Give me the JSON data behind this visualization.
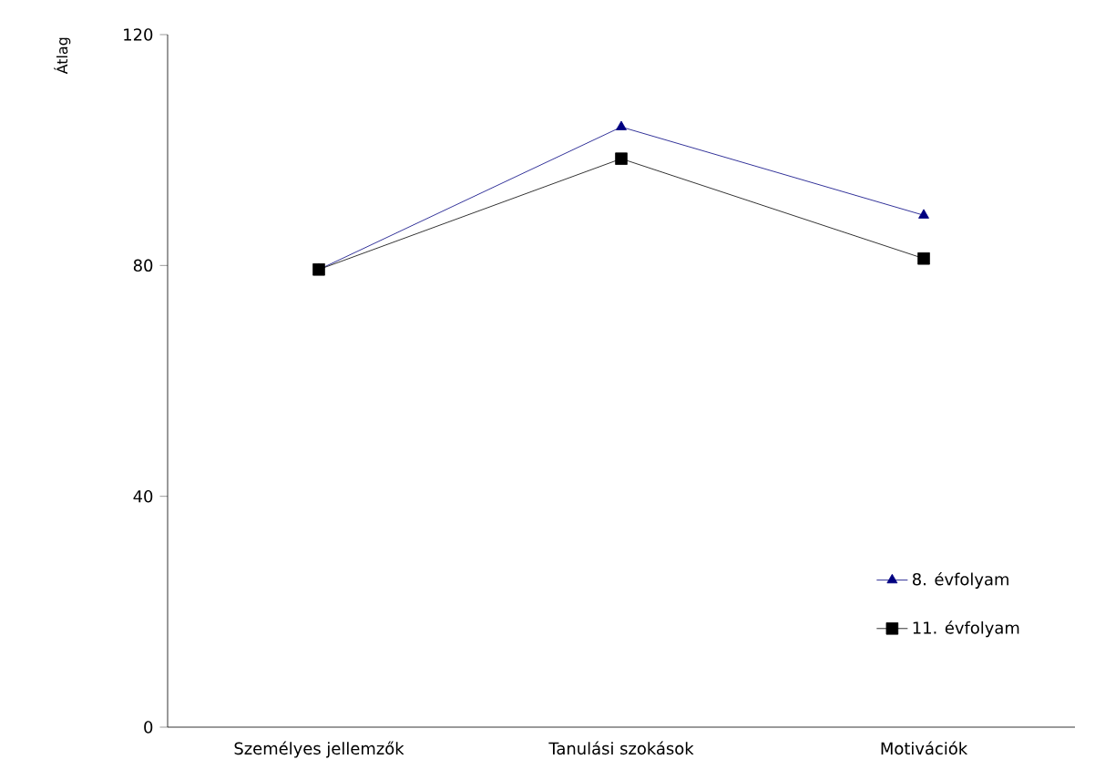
{
  "chart_data": {
    "type": "line",
    "ylabel": "Átlag",
    "categories": [
      "Személyes jellemzők",
      "Tanulási szokások",
      "Motivációk"
    ],
    "series": [
      {
        "name": "8. évfolyam",
        "color": "#000080",
        "marker": "triangle",
        "values": [
          79.3,
          104,
          88.7
        ]
      },
      {
        "name": "11. évfolyam",
        "color": "#000000",
        "marker": "square",
        "values": [
          79.3,
          98.5,
          81.2
        ]
      }
    ],
    "ylim": [
      0,
      120
    ],
    "yticks": [
      0,
      40,
      80,
      120
    ],
    "grid": false,
    "legend": "bottom right",
    "line_style": "solid"
  }
}
